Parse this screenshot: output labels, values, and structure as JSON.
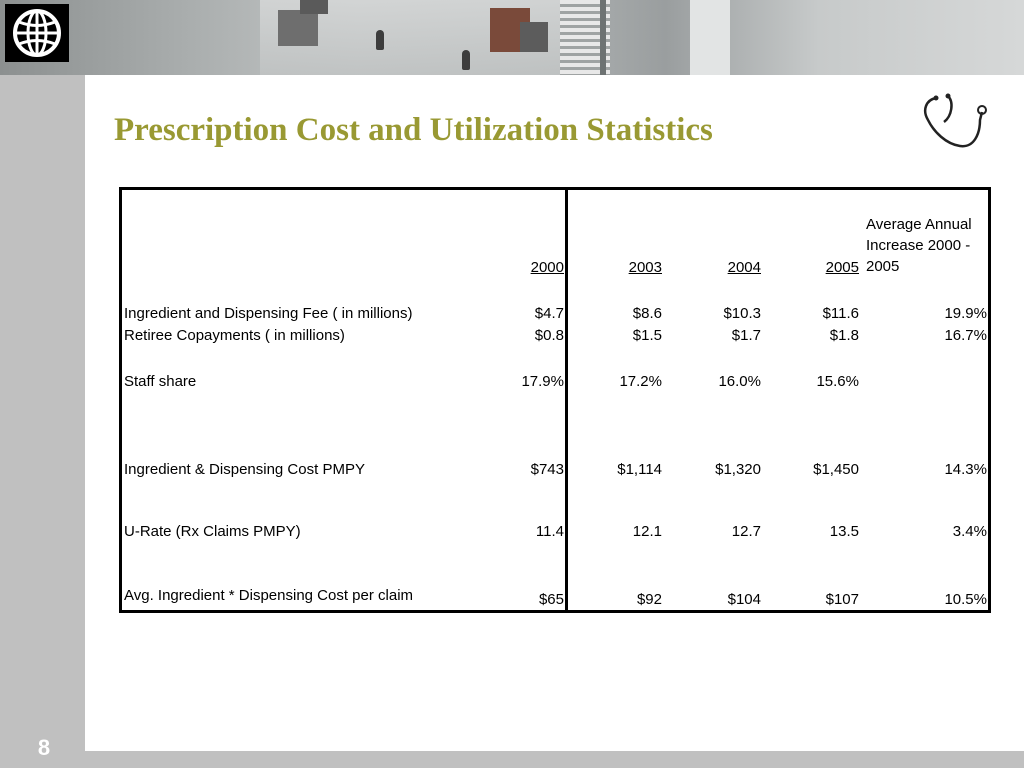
{
  "slide": {
    "title": "Prescription Cost and Utilization Statistics",
    "page_number": "8"
  },
  "icons": {
    "logo": "world-bank-globe-icon",
    "stethoscope": "stethoscope-icon"
  },
  "table": {
    "headers": {
      "y2000": "2000",
      "y2003": "2003",
      "y2004": "2004",
      "y2005": "2005",
      "avg": "Average Annual Increase 2000 - 2005"
    },
    "rows": [
      {
        "label": "Ingredient and Dispensing Fee ( in millions)",
        "y2000": "$4.7",
        "y2003": "$8.6",
        "y2004": "$10.3",
        "y2005": "$11.6",
        "avg": "19.9%"
      },
      {
        "label": "Retiree Copayments ( in millions)",
        "y2000": "$0.8",
        "y2003": "$1.5",
        "y2004": "$1.7",
        "y2005": "$1.8",
        "avg": "16.7%"
      },
      {
        "label": "Staff share",
        "y2000": "17.9%",
        "y2003": "17.2%",
        "y2004": "16.0%",
        "y2005": "15.6%",
        "avg": ""
      },
      {
        "label": "Ingredient & Dispensing Cost PMPY",
        "y2000": "$743",
        "y2003": "$1,114",
        "y2004": "$1,320",
        "y2005": "$1,450",
        "avg": "14.3%"
      },
      {
        "label": "U-Rate (Rx Claims PMPY)",
        "y2000": "11.4",
        "y2003": "12.1",
        "y2004": "12.7",
        "y2005": "13.5",
        "avg": "3.4%"
      },
      {
        "label": "Avg. Ingredient * Dispensing Cost per claim",
        "y2000": "$65",
        "y2003": "$92",
        "y2004": "$104",
        "y2005": "$107",
        "avg": "10.5%"
      }
    ]
  },
  "colors": {
    "title": "#999933",
    "sidebar": "#c0c0c0",
    "border": "#000000"
  }
}
